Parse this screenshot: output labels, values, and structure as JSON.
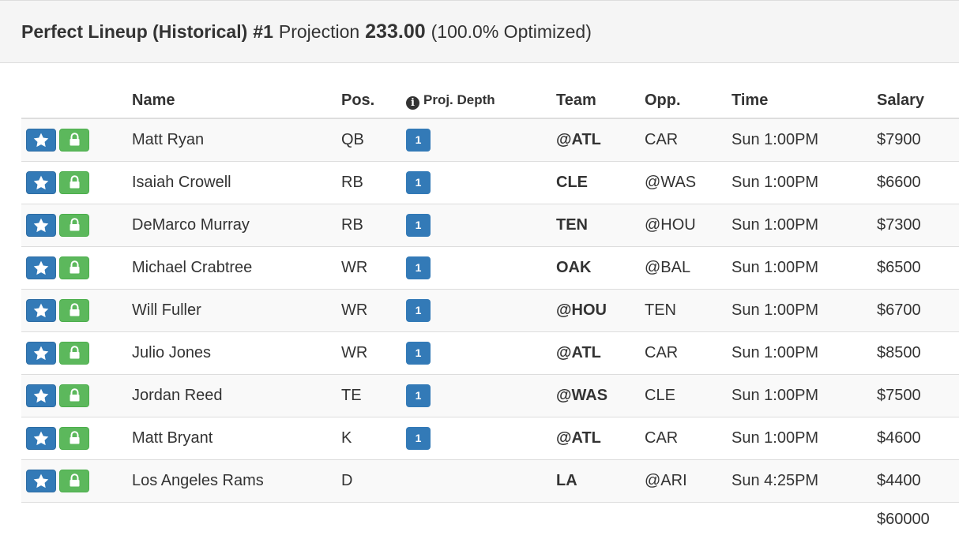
{
  "heading": {
    "title": "Perfect Lineup (Historical)",
    "number": "#1",
    "projection_label": "Projection",
    "projection_value": "233.00",
    "optimized": "(100.0% Optimized)"
  },
  "columns": {
    "name": "Name",
    "pos": "Pos.",
    "depth": "Proj. Depth",
    "team": "Team",
    "opp": "Opp.",
    "time": "Time",
    "salary": "Salary"
  },
  "icons": {
    "star": "star-icon",
    "lock": "lock-icon",
    "info": "info-icon"
  },
  "colors": {
    "primary": "#337ab7",
    "success": "#5cb85c",
    "heading_bg": "#f5f5f5",
    "stripe": "#f9f9f9",
    "border": "#dddddd",
    "text": "#333333"
  },
  "rows": [
    {
      "name": "Matt Ryan",
      "pos": "QB",
      "depth": "1",
      "team": "@ATL",
      "opp": "CAR",
      "time": "Sun 1:00PM",
      "salary": "$7900"
    },
    {
      "name": "Isaiah Crowell",
      "pos": "RB",
      "depth": "1",
      "team": "CLE",
      "opp": "@WAS",
      "time": "Sun 1:00PM",
      "salary": "$6600"
    },
    {
      "name": "DeMarco Murray",
      "pos": "RB",
      "depth": "1",
      "team": "TEN",
      "opp": "@HOU",
      "time": "Sun 1:00PM",
      "salary": "$7300"
    },
    {
      "name": "Michael Crabtree",
      "pos": "WR",
      "depth": "1",
      "team": "OAK",
      "opp": "@BAL",
      "time": "Sun 1:00PM",
      "salary": "$6500"
    },
    {
      "name": "Will Fuller",
      "pos": "WR",
      "depth": "1",
      "team": "@HOU",
      "opp": "TEN",
      "time": "Sun 1:00PM",
      "salary": "$6700"
    },
    {
      "name": "Julio Jones",
      "pos": "WR",
      "depth": "1",
      "team": "@ATL",
      "opp": "CAR",
      "time": "Sun 1:00PM",
      "salary": "$8500"
    },
    {
      "name": "Jordan Reed",
      "pos": "TE",
      "depth": "1",
      "team": "@WAS",
      "opp": "CLE",
      "time": "Sun 1:00PM",
      "salary": "$7500"
    },
    {
      "name": "Matt Bryant",
      "pos": "K",
      "depth": "1",
      "team": "@ATL",
      "opp": "CAR",
      "time": "Sun 1:00PM",
      "salary": "$4600"
    },
    {
      "name": "Los Angeles Rams",
      "pos": "D",
      "depth": "",
      "team": "LA",
      "opp": "@ARI",
      "time": "Sun 4:25PM",
      "salary": "$4400"
    }
  ],
  "total_salary": "$60000"
}
